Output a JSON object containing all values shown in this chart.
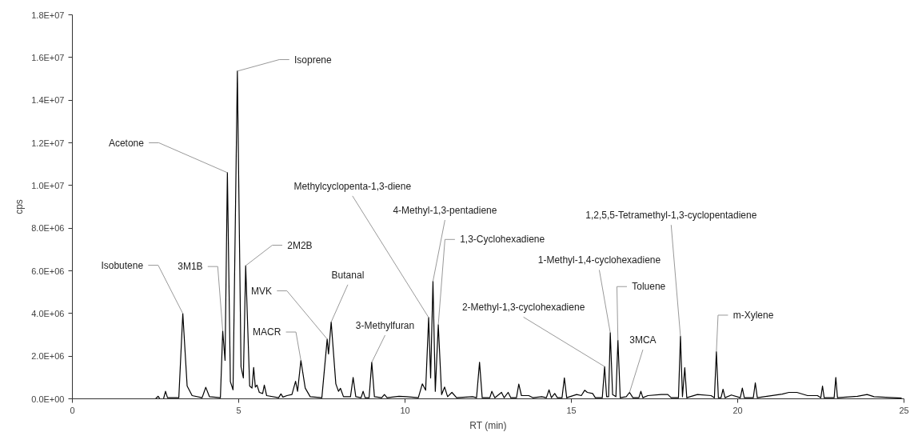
{
  "chart_data": {
    "type": "line",
    "xlabel": "RT (min)",
    "ylabel": "cps",
    "xlim": [
      0,
      25
    ],
    "xticks": [
      0,
      5,
      10,
      15,
      20,
      25
    ],
    "ylim": [
      0,
      18000000.0
    ],
    "yticks": [
      {
        "value": 0,
        "label": "0.0E+00"
      },
      {
        "value": 2000000.0,
        "label": "2.0E+06"
      },
      {
        "value": 4000000.0,
        "label": "4.0E+06"
      },
      {
        "value": 6000000.0,
        "label": "6.0E+06"
      },
      {
        "value": 8000000.0,
        "label": "8.0E+06"
      },
      {
        "value": 10000000.0,
        "label": "1.0E+07"
      },
      {
        "value": 12000000.0,
        "label": "1.2E+07"
      },
      {
        "value": 14000000.0,
        "label": "1.4E+07"
      },
      {
        "value": 16000000.0,
        "label": "1.6E+07"
      },
      {
        "value": 18000000.0,
        "label": "1.8E+07"
      }
    ],
    "grid": false,
    "marker": "none",
    "line_style": "solid",
    "series": [
      {
        "color": "#000000",
        "x": [
          0,
          2.5,
          2.58,
          2.63,
          2.74,
          2.8,
          2.86,
          3.2,
          3.32,
          3.45,
          3.6,
          3.9,
          4.01,
          4.12,
          4.45,
          4.52,
          4.59,
          4.66,
          4.75,
          4.83,
          4.96,
          5.07,
          5.14,
          5.21,
          5.33,
          5.4,
          5.45,
          5.5,
          5.55,
          5.62,
          5.72,
          5.77,
          5.84,
          6.2,
          6.27,
          6.33,
          6.45,
          6.6,
          6.71,
          6.77,
          6.87,
          7.0,
          7.15,
          7.5,
          7.66,
          7.7,
          7.78,
          7.92,
          8.0,
          8.06,
          8.15,
          8.36,
          8.44,
          8.52,
          8.68,
          8.74,
          8.8,
          8.92,
          9.0,
          9.08,
          9.3,
          9.38,
          9.46,
          9.82,
          10.05,
          10.4,
          10.52,
          10.62,
          10.71,
          10.77,
          10.84,
          10.91,
          11.0,
          11.1,
          11.19,
          11.28,
          11.41,
          11.55,
          12.03,
          12.15,
          12.24,
          12.32,
          12.55,
          12.61,
          12.7,
          12.9,
          12.98,
          13.1,
          13.18,
          13.35,
          13.42,
          13.5,
          13.72,
          13.85,
          14.11,
          14.25,
          14.33,
          14.4,
          14.5,
          14.58,
          14.72,
          14.79,
          14.86,
          15.16,
          15.3,
          15.4,
          15.48,
          15.64,
          15.72,
          15.93,
          16.0,
          16.06,
          16.12,
          16.17,
          16.24,
          16.34,
          16.4,
          16.47,
          16.65,
          16.75,
          16.85,
          17.03,
          17.09,
          17.15,
          17.3,
          17.7,
          17.9,
          18.0,
          18.22,
          18.28,
          18.34,
          18.41,
          18.47,
          18.79,
          19.2,
          19.3,
          19.36,
          19.42,
          19.5,
          19.56,
          19.62,
          19.81,
          20.08,
          20.14,
          20.2,
          20.47,
          20.53,
          20.59,
          21.34,
          21.54,
          21.78,
          22.1,
          22.4,
          22.5,
          22.55,
          22.6,
          22.9,
          22.95,
          23.0,
          23.6,
          23.89,
          24.1,
          24.93
        ],
        "values": [
          0,
          0,
          120000.0,
          0,
          0,
          350000.0,
          50000.0,
          50000.0,
          4000000.0,
          600000.0,
          150000.0,
          50000.0,
          540000.0,
          100000.0,
          50000.0,
          3180000.0,
          1800000.0,
          10600000.0,
          800000.0,
          420000.0,
          15360000.0,
          1500000.0,
          980000.0,
          6240000.0,
          600000.0,
          500000.0,
          1470000.0,
          550000.0,
          640000.0,
          300000.0,
          250000.0,
          640000.0,
          150000.0,
          50000.0,
          230000.0,
          80000.0,
          150000.0,
          200000.0,
          820000.0,
          350000.0,
          1800000.0,
          500000.0,
          100000.0,
          50000.0,
          2800000.0,
          2100000.0,
          3600000.0,
          700000.0,
          350000.0,
          490000.0,
          100000.0,
          100000.0,
          1000000.0,
          100000.0,
          50000.0,
          350000.0,
          50000.0,
          50000.0,
          1710000.0,
          100000.0,
          50000.0,
          200000.0,
          50000.0,
          120000.0,
          100000.0,
          50000.0,
          700000.0,
          400000.0,
          3810000.0,
          980000.0,
          5510000.0,
          350000.0,
          3470000.0,
          200000.0,
          550000.0,
          100000.0,
          300000.0,
          50000.0,
          100000.0,
          50000.0,
          1710000.0,
          50000.0,
          50000.0,
          350000.0,
          50000.0,
          300000.0,
          50000.0,
          300000.0,
          50000.0,
          50000.0,
          690000.0,
          150000.0,
          150000.0,
          50000.0,
          100000.0,
          50000.0,
          420000.0,
          50000.0,
          250000.0,
          50000.0,
          50000.0,
          980000.0,
          50000.0,
          200000.0,
          150000.0,
          400000.0,
          300000.0,
          250000.0,
          50000.0,
          50000.0,
          1510000.0,
          100000.0,
          100000.0,
          3100000.0,
          200000.0,
          100000.0,
          2740000.0,
          50000.0,
          100000.0,
          300000.0,
          50000.0,
          50000.0,
          350000.0,
          50000.0,
          150000.0,
          200000.0,
          200000.0,
          50000.0,
          50000.0,
          2930000.0,
          100000.0,
          1460000.0,
          50000.0,
          200000.0,
          150000.0,
          50000.0,
          2210000.0,
          50000.0,
          50000.0,
          450000.0,
          50000.0,
          180000.0,
          50000.0,
          500000.0,
          50000.0,
          50000.0,
          750000.0,
          50000.0,
          220000.0,
          300000.0,
          300000.0,
          150000.0,
          150000.0,
          50000.0,
          600000.0,
          50000.0,
          50000.0,
          1000000.0,
          50000.0,
          120000.0,
          200000.0,
          100000.0,
          30000.0
        ]
      }
    ],
    "annotations": [
      {
        "text": "Isobutene",
        "x": 3.32,
        "y": 4000000.0
      },
      {
        "text": "3M1B",
        "x": 4.52,
        "y": 3180000.0
      },
      {
        "text": "Acetone",
        "x": 4.66,
        "y": 10600000.0
      },
      {
        "text": "Isoprene",
        "x": 4.96,
        "y": 15360000.0
      },
      {
        "text": "2M2B",
        "x": 5.21,
        "y": 6240000.0
      },
      {
        "text": "MVK",
        "x": 7.66,
        "y": 2800000.0
      },
      {
        "text": "MACR",
        "x": 6.87,
        "y": 1800000.0
      },
      {
        "text": "Butanal",
        "x": 7.78,
        "y": 3600000.0
      },
      {
        "text": "3-Methylfuran",
        "x": 9.0,
        "y": 1710000.0
      },
      {
        "text": "Methylcyclopenta-1,3-diene",
        "x": 10.71,
        "y": 3810000.0
      },
      {
        "text": "4-Methyl-1,3-pentadiene",
        "x": 10.84,
        "y": 5510000.0
      },
      {
        "text": "1,3-Cyclohexadiene",
        "x": 11.0,
        "y": 3470000.0
      },
      {
        "text": "2-Methyl-1,3-cyclohexadiene",
        "x": 16.0,
        "y": 1510000.0
      },
      {
        "text": "1-Methyl-1,4-cyclohexadiene",
        "x": 16.17,
        "y": 3100000.0
      },
      {
        "text": "Toluene",
        "x": 16.4,
        "y": 2740000.0
      },
      {
        "text": "3MCA",
        "x": 16.75,
        "y": 300000.0
      },
      {
        "text": "1,2,5,5-Tetramethyl-1,3-cyclopentadiene",
        "x": 18.28,
        "y": 2930000.0
      },
      {
        "text": "m-Xylene",
        "x": 19.36,
        "y": 2210000.0
      }
    ]
  }
}
